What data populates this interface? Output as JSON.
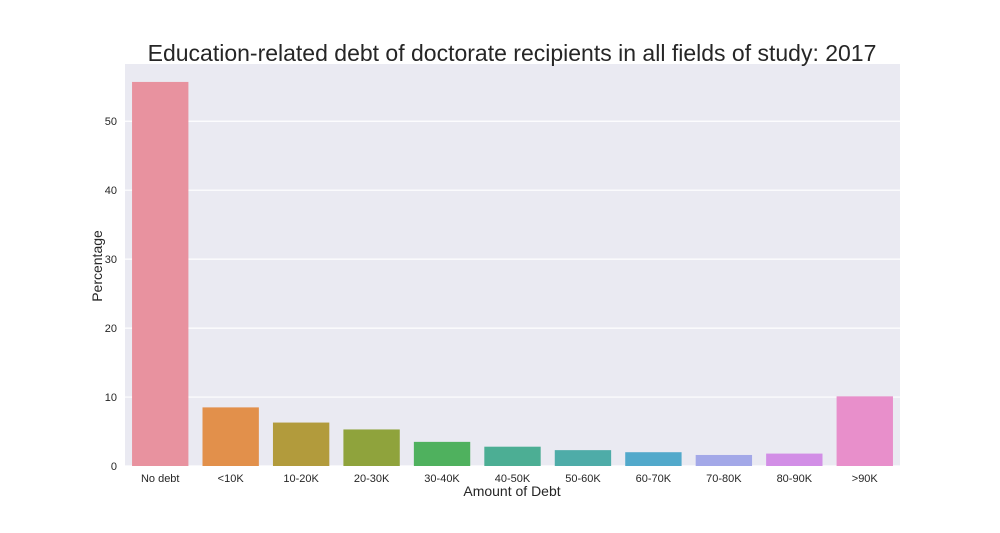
{
  "chart_data": {
    "type": "bar",
    "title": "Education-related debt of doctorate recipients in all fields of study: 2017",
    "xlabel": "Amount of Debt",
    "ylabel": "Percentage",
    "categories": [
      "No debt",
      "<10K",
      "10-20K",
      "20-30K",
      "30-40K",
      "40-50K",
      "50-60K",
      "60-70K",
      "70-80K",
      "80-90K",
      ">90K"
    ],
    "values": [
      55.7,
      8.5,
      6.3,
      5.3,
      3.5,
      2.8,
      2.3,
      2.0,
      1.6,
      1.8,
      10.1
    ],
    "ylim": [
      0,
      58.3
    ],
    "yticks": [
      0,
      10,
      20,
      30,
      40,
      50
    ],
    "grid": true,
    "colors": [
      "#e8929f",
      "#e2904b",
      "#b29b3c",
      "#8fa33c",
      "#4fb15e",
      "#4cae94",
      "#4eaca8",
      "#52a9cb",
      "#a3a8e8",
      "#d28ee6",
      "#e88fcb"
    ],
    "background": "#eaeaf2"
  }
}
